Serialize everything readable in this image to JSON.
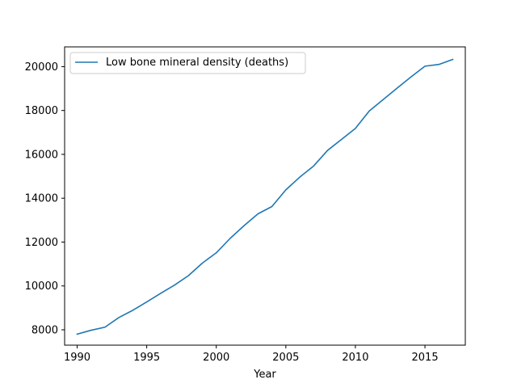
{
  "chart_data": {
    "type": "line",
    "title": "",
    "xlabel": "Year",
    "ylabel": "",
    "xlim": [
      1989.1,
      2017.9
    ],
    "ylim": [
      7300,
      20900
    ],
    "xticks": [
      1990,
      1995,
      2000,
      2005,
      2010,
      2015
    ],
    "yticks": [
      8000,
      10000,
      12000,
      14000,
      16000,
      18000,
      20000
    ],
    "grid": false,
    "legend_position": "top-left",
    "series": [
      {
        "name": "Low bone mineral density (deaths)",
        "color": "#1f77b4",
        "x": [
          1990,
          1991,
          1992,
          1993,
          1994,
          1995,
          1996,
          1997,
          1998,
          1999,
          2000,
          2001,
          2002,
          2003,
          2004,
          2005,
          2006,
          2007,
          2008,
          2009,
          2010,
          2011,
          2012,
          2013,
          2014,
          2015,
          2016,
          2017
        ],
        "y": [
          7800,
          7980,
          8120,
          8560,
          8890,
          9270,
          9660,
          10040,
          10470,
          11040,
          11510,
          12170,
          12750,
          13290,
          13620,
          14380,
          14960,
          15470,
          16180,
          16680,
          17180,
          17980,
          18500,
          19020,
          19530,
          20020,
          20100,
          20330
        ]
      }
    ]
  }
}
